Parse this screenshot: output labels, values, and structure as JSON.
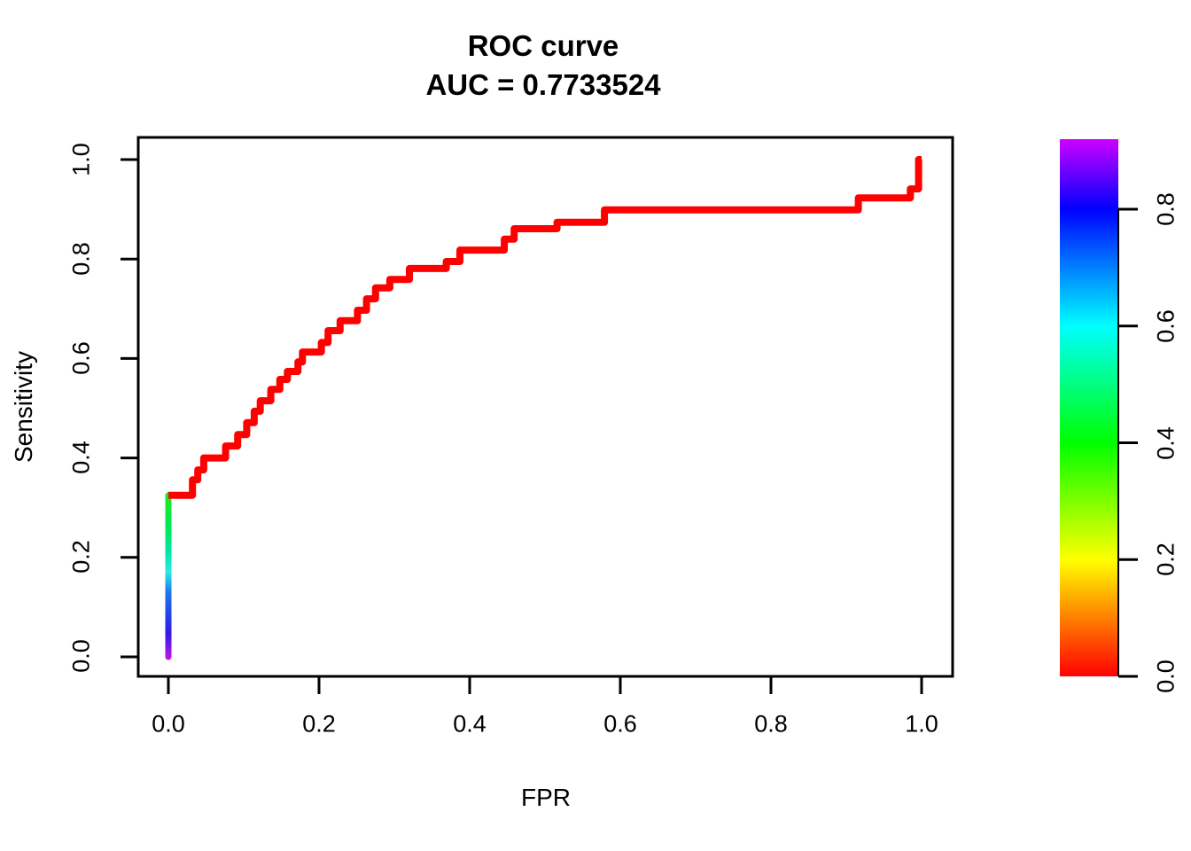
{
  "title": "ROC curve",
  "subtitle": "AUC = 0.7733524",
  "chart_data": {
    "type": "line",
    "title": "ROC curve",
    "subtitle": "AUC = 0.7733524",
    "auc": 0.7733524,
    "xlabel": "FPR",
    "ylabel": "Sensitivity",
    "xlim": [
      0,
      1
    ],
    "ylim": [
      0,
      1
    ],
    "grid": false,
    "legend_position": "right-colorbar",
    "curve_color": "#FF0000",
    "x_ticks": [
      0,
      0.2,
      0.4,
      0.6,
      0.8,
      1.0
    ],
    "y_ticks": [
      0,
      0.2,
      0.4,
      0.6,
      0.8,
      1.0
    ],
    "x_tick_labels": [
      "0.0",
      "0.2",
      "0.4",
      "0.6",
      "0.8",
      "1.0"
    ],
    "y_tick_labels": [
      "0.0",
      "0.2",
      "0.4",
      "0.6",
      "0.8",
      "1.0"
    ],
    "roc_points": [
      [
        0.0,
        0.325
      ],
      [
        0.032,
        0.325
      ],
      [
        0.032,
        0.356
      ],
      [
        0.039,
        0.356
      ],
      [
        0.039,
        0.376
      ],
      [
        0.047,
        0.376
      ],
      [
        0.047,
        0.4
      ],
      [
        0.076,
        0.4
      ],
      [
        0.076,
        0.424
      ],
      [
        0.092,
        0.424
      ],
      [
        0.092,
        0.447
      ],
      [
        0.104,
        0.447
      ],
      [
        0.104,
        0.471
      ],
      [
        0.114,
        0.471
      ],
      [
        0.114,
        0.494
      ],
      [
        0.122,
        0.494
      ],
      [
        0.122,
        0.515
      ],
      [
        0.136,
        0.515
      ],
      [
        0.136,
        0.538
      ],
      [
        0.148,
        0.538
      ],
      [
        0.148,
        0.558
      ],
      [
        0.158,
        0.558
      ],
      [
        0.158,
        0.574
      ],
      [
        0.172,
        0.574
      ],
      [
        0.172,
        0.593
      ],
      [
        0.178,
        0.593
      ],
      [
        0.178,
        0.613
      ],
      [
        0.203,
        0.613
      ],
      [
        0.203,
        0.632
      ],
      [
        0.212,
        0.632
      ],
      [
        0.212,
        0.656
      ],
      [
        0.228,
        0.656
      ],
      [
        0.228,
        0.676
      ],
      [
        0.251,
        0.676
      ],
      [
        0.251,
        0.697
      ],
      [
        0.263,
        0.697
      ],
      [
        0.263,
        0.72
      ],
      [
        0.275,
        0.72
      ],
      [
        0.275,
        0.742
      ],
      [
        0.294,
        0.742
      ],
      [
        0.294,
        0.759
      ],
      [
        0.32,
        0.759
      ],
      [
        0.32,
        0.781
      ],
      [
        0.369,
        0.781
      ],
      [
        0.369,
        0.795
      ],
      [
        0.387,
        0.795
      ],
      [
        0.387,
        0.818
      ],
      [
        0.446,
        0.818
      ],
      [
        0.446,
        0.84
      ],
      [
        0.459,
        0.84
      ],
      [
        0.459,
        0.861
      ],
      [
        0.516,
        0.861
      ],
      [
        0.516,
        0.874
      ],
      [
        0.579,
        0.874
      ],
      [
        0.579,
        0.899
      ],
      [
        0.916,
        0.899
      ],
      [
        0.916,
        0.923
      ],
      [
        0.985,
        0.923
      ],
      [
        0.985,
        0.941
      ],
      [
        0.996,
        0.941
      ],
      [
        0.996,
        1.0
      ],
      [
        1.0,
        1.0
      ]
    ],
    "threshold_segment": {
      "x": 0,
      "y_from": 0,
      "y_to": 0.325,
      "gradient_colors_bottom_to_top": [
        {
          "offset": 0.0,
          "color": "#B517E8"
        },
        {
          "offset": 0.14,
          "color": "#3417E8"
        },
        {
          "offset": 0.26,
          "color": "#2444E8"
        },
        {
          "offset": 0.4,
          "color": "#1E78E8"
        },
        {
          "offset": 0.52,
          "color": "#2BE8E8"
        },
        {
          "offset": 0.66,
          "color": "#00E8A0"
        },
        {
          "offset": 0.8,
          "color": "#00E855"
        },
        {
          "offset": 1.0,
          "color": "#22E822"
        }
      ]
    },
    "colorbar": {
      "range": [
        0,
        0.92
      ],
      "tick_values": [
        0,
        0.2,
        0.4,
        0.6,
        0.8
      ],
      "tick_labels": [
        "0.0",
        "0.2",
        "0.4",
        "0.6",
        "0.8"
      ],
      "color_stops": [
        {
          "value": 0.0,
          "color": "#FF0000"
        },
        {
          "value": 0.2,
          "color": "#FFFF00"
        },
        {
          "value": 0.4,
          "color": "#00FF00"
        },
        {
          "value": 0.6,
          "color": "#00FFFF"
        },
        {
          "value": 0.8,
          "color": "#0000FF"
        },
        {
          "value": 0.92,
          "color": "#CC00FF"
        }
      ]
    }
  }
}
